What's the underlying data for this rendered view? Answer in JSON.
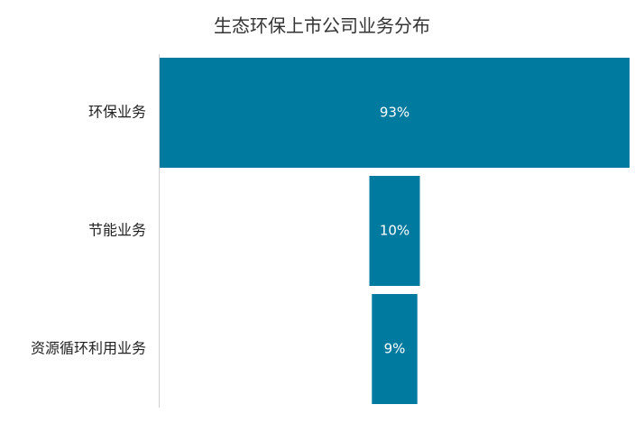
{
  "chart_data": {
    "type": "funnel",
    "title": "生态环保上市公司业务分布",
    "categories": [
      "环保业务",
      "节能业务",
      "资源循环利用业务"
    ],
    "values": [
      93,
      10,
      9
    ],
    "value_labels": [
      "93%",
      "10%",
      "9%"
    ],
    "color": "#007a9e"
  }
}
